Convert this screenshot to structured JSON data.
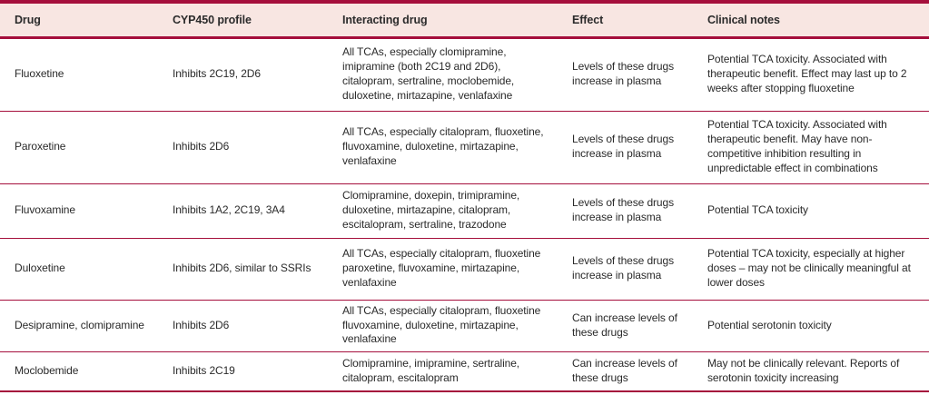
{
  "colors": {
    "accent_rule": "#a50f3c",
    "header_background": "#f8e6e2",
    "body_text": "#2a2a2a"
  },
  "header": {
    "columns": {
      "drug": "Drug",
      "cyp450_profile": "CYP450 profile",
      "interacting_drug": "Interacting drug",
      "effect": "Effect",
      "clinical_notes": "Clinical notes"
    }
  },
  "rows": [
    {
      "drug": "Fluoxetine",
      "cyp450_profile": "Inhibits 2C19, 2D6",
      "interacting_drug": "All TCAs, especially clomipramine, imipramine (both 2C19 and 2D6), citalopram, sertraline, moclobemide, duloxetine, mirtazapine, venlafaxine",
      "effect": "Levels of these drugs increase in plasma",
      "clinical_notes": "Potential TCA toxicity. Associated with therapeutic benefit. Effect may last up to 2 weeks after stopping fluoxetine"
    },
    {
      "drug": "Paroxetine",
      "cyp450_profile": "Inhibits 2D6",
      "interacting_drug": "All TCAs, especially citalopram, fluoxetine, fluvoxamine, duloxetine, mirtazapine, venlafaxine",
      "effect": "Levels of these drugs increase in plasma",
      "clinical_notes": "Potential TCA toxicity. Associated with therapeutic benefit. May have non-competitive inhibition resulting in unpredictable effect in combinations"
    },
    {
      "drug": "Fluvoxamine",
      "cyp450_profile": "Inhibits 1A2, 2C19, 3A4",
      "interacting_drug": "Clomipramine, doxepin, trimipramine, duloxetine, mirtazapine, citalopram, escitalopram, sertraline, trazodone",
      "effect": "Levels of these drugs increase in plasma",
      "clinical_notes": "Potential TCA toxicity"
    },
    {
      "drug": "Duloxetine",
      "cyp450_profile": "Inhibits 2D6, similar to SSRIs",
      "interacting_drug": "All TCAs, especially citalopram, fluoxetine paroxetine, fluvoxamine, mirtazapine, venlafaxine",
      "effect": "Levels of these drugs increase in plasma",
      "clinical_notes": "Potential TCA toxicity, especially at higher doses – may not be clinically meaningful at lower doses"
    },
    {
      "drug": "Desipramine, clomipramine",
      "cyp450_profile": "Inhibits 2D6",
      "interacting_drug": "All TCAs, especially citalopram, fluoxetine fluvoxamine, duloxetine, mirtazapine, venlafaxine",
      "effect": "Can increase levels of these drugs",
      "clinical_notes": "Potential serotonin toxicity"
    },
    {
      "drug": "Moclobemide",
      "cyp450_profile": "Inhibits 2C19",
      "interacting_drug": "Clomipramine, imipramine, sertraline, citalopram, escitalopram",
      "effect": "Can increase levels of these drugs",
      "clinical_notes": "May not be clinically relevant. Reports of serotonin toxicity increasing"
    }
  ]
}
